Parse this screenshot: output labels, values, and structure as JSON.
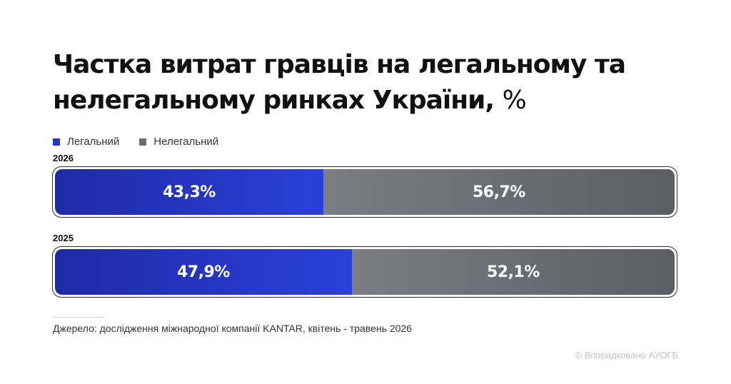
{
  "title": {
    "text": "Частка витрат гравців на легальному та нелегальному ринках України,",
    "unit": "%"
  },
  "colors": {
    "legal": "#2336c4",
    "illegal": "#6b6e75"
  },
  "chart_data": {
    "type": "bar",
    "orientation": "horizontal",
    "stacked": true,
    "title": "Частка витрат гравців на легальному та нелегальному ринках України, %",
    "categories": [
      "2026",
      "2025"
    ],
    "series": [
      {
        "name": "Легальний",
        "values": [
          43.3,
          47.9
        ],
        "labels": [
          "43,3%",
          "47,9%"
        ]
      },
      {
        "name": "Нелегальний",
        "values": [
          56.7,
          52.1
        ],
        "labels": [
          "56,7%",
          "52,1%"
        ]
      }
    ],
    "xlim": [
      0,
      100
    ],
    "legend": "top-left",
    "grid": false
  },
  "source": "Джерело: дослідження міжнародної компанії KANTAR, квітень - травень 2026",
  "credit": "© Впорядковано АУОГБ"
}
